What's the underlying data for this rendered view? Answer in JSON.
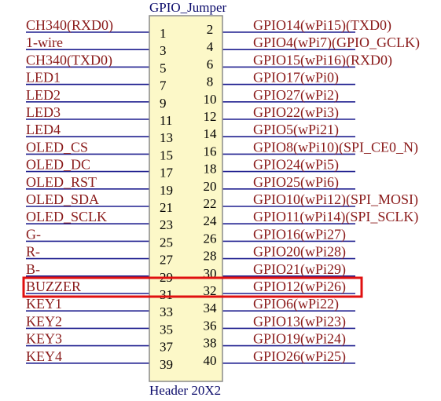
{
  "component": {
    "designator": "GPIO_Jumper",
    "part_name": "Header 20X2"
  },
  "pin_rows": [
    {
      "left": "CH340(RXD0)",
      "odd": "1",
      "even": "2",
      "right": "GPIO14(wPi15)(TXD0)"
    },
    {
      "left": "1-wire",
      "odd": "3",
      "even": "4",
      "right": "GPIO4(wPi7)(GPIO_GCLK)"
    },
    {
      "left": "CH340(TXD0)",
      "odd": "5",
      "even": "6",
      "right": "GPIO15(wPi16)(RXD0)"
    },
    {
      "left": "LED1",
      "odd": "7",
      "even": "8",
      "right": "GPIO17(wPi0)"
    },
    {
      "left": "LED2",
      "odd": "9",
      "even": "10",
      "right": "GPIO27(wPi2)"
    },
    {
      "left": "LED3",
      "odd": "11",
      "even": "12",
      "right": "GPIO22(wPi3)"
    },
    {
      "left": "LED4",
      "odd": "13",
      "even": "14",
      "right": "GPIO5(wPi21)"
    },
    {
      "left": "OLED_CS",
      "odd": "15",
      "even": "16",
      "right": "GPIO8(wPi10)(SPI_CE0_N)"
    },
    {
      "left": "OLED_DC",
      "odd": "17",
      "even": "18",
      "right": "GPIO24(wPi5)"
    },
    {
      "left": "OLED_RST",
      "odd": "19",
      "even": "20",
      "right": "GPIO25(wPi6)"
    },
    {
      "left": "OLED_SDA",
      "odd": "21",
      "even": "22",
      "right": "GPIO10(wPi12)(SPI_MOSI)"
    },
    {
      "left": "OLED_SCLK",
      "odd": "23",
      "even": "24",
      "right": "GPIO11(wPi14)(SPI_SCLK)"
    },
    {
      "left": "G-",
      "odd": "25",
      "even": "26",
      "right": "GPIO16(wPi27)"
    },
    {
      "left": "R-",
      "odd": "27",
      "even": "28",
      "right": "GPIO20(wPi28)"
    },
    {
      "left": "B-",
      "odd": "29",
      "even": "30",
      "right": "GPIO21(wPi29)"
    },
    {
      "left": "BUZZER",
      "odd": "31",
      "even": "32",
      "right": "GPIO12(wPi26)"
    },
    {
      "left": "KEY1",
      "odd": "33",
      "even": "34",
      "right": "GPIO6(wPi22)"
    },
    {
      "left": "KEY2",
      "odd": "35",
      "even": "36",
      "right": "GPIO13(wPi23)"
    },
    {
      "left": "KEY3",
      "odd": "37",
      "even": "38",
      "right": "GPIO19(wPi24)"
    },
    {
      "left": "KEY4",
      "odd": "39",
      "even": "40",
      "right": "GPIO26(wPi25)"
    }
  ],
  "highlight": {
    "row_label": "BUZZER",
    "color": "#e01010"
  },
  "colors": {
    "net_label": "#8a1a1a",
    "wire": "#1f1f8f",
    "body_fill": "#fcf8c8",
    "body_stroke": "#8a8a8a",
    "pin_number": "#000000",
    "component_text": "#0a0a6a"
  }
}
